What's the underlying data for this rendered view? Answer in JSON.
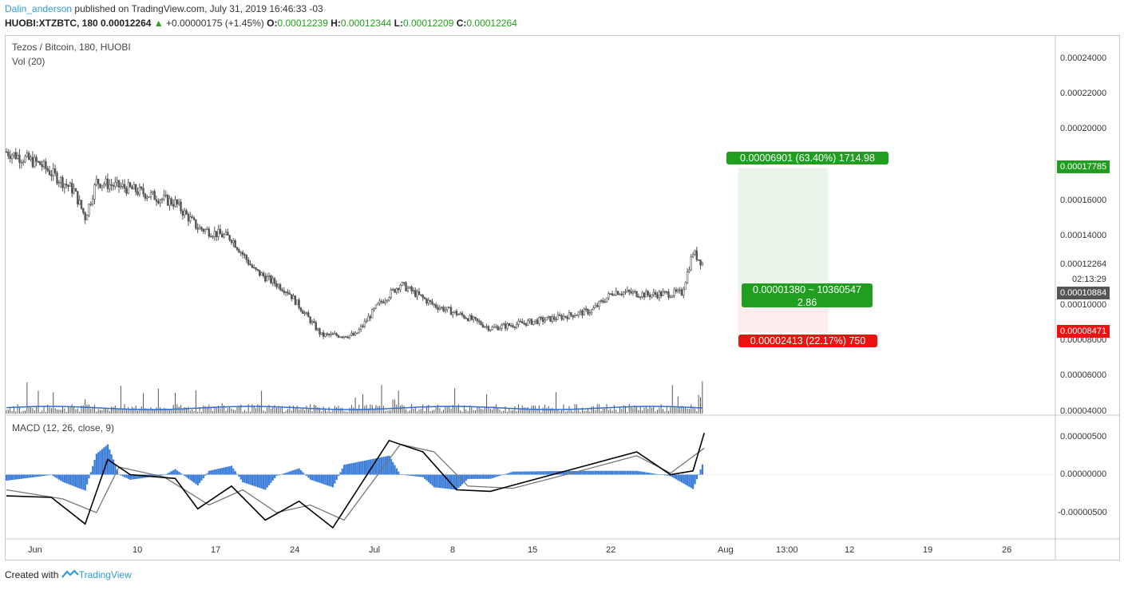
{
  "header": {
    "author": "Dalin_anderson",
    "published": "published on TradingView.com, July 31, 2019 16:46:33 -03",
    "symbol": "HUOBI:XTZBTC, 180",
    "last": "0.00012264",
    "change": "+0.00000175 (+1.45%)",
    "o_label": "O:",
    "o_value": "0.00012239",
    "h_label": "H:",
    "h_value": "0.00012344",
    "l_label": "L:",
    "l_value": "0.00012209",
    "c_label": "C:",
    "c_value": "0.00012264"
  },
  "legend": {
    "main": "Tezos / Bitcoin, 180, HUOBI",
    "volume": "Vol (20)",
    "macd": "MACD (12, 26, close, 9)"
  },
  "footer": {
    "created_with": "Created with",
    "brand": "TradingView"
  },
  "colors": {
    "candle": "#555555",
    "volume": "#555555",
    "vol_ma": "#2f6fd6",
    "macd_line": "#000000",
    "signal_line": "#777777",
    "hist": "#3b7dd8",
    "profit_zone": "#e8f5e8",
    "loss_zone": "#fdecec",
    "profit_label": "#1f9e1f",
    "loss_label": "#ee1111",
    "current_tag": "#555555"
  },
  "chart_data": [
    {
      "type": "candlestick",
      "title": "Tezos / Bitcoin, 180, HUOBI",
      "x_tick_labels": [
        "Jun",
        "10",
        "17",
        "24",
        "Jul",
        "8",
        "15",
        "22",
        "Aug",
        "13:00",
        "12",
        "19",
        "26"
      ],
      "y_tick_labels": [
        "0.00024000",
        "0.00022000",
        "0.00020000",
        "0.00016000",
        "0.00014000",
        "0.00010000",
        "0.00008000",
        "0.00006000",
        "0.00004000"
      ],
      "ylim": [
        4e-05,
        0.00025
      ],
      "close_trend": [
        {
          "date": "2019-05-30",
          "close": 0.000187
        },
        {
          "date": "2019-06-02",
          "close": 0.00018
        },
        {
          "date": "2019-06-05",
          "close": 0.000165
        },
        {
          "date": "2019-06-06",
          "close": 0.00015
        },
        {
          "date": "2019-06-07",
          "close": 0.00017
        },
        {
          "date": "2019-06-10",
          "close": 0.000166
        },
        {
          "date": "2019-06-14",
          "close": 0.000158
        },
        {
          "date": "2019-06-16",
          "close": 0.000144
        },
        {
          "date": "2019-06-19",
          "close": 0.000138
        },
        {
          "date": "2019-06-21",
          "close": 0.00012
        },
        {
          "date": "2019-06-24",
          "close": 0.000108
        },
        {
          "date": "2019-06-27",
          "close": 8.3e-05
        },
        {
          "date": "2019-06-30",
          "close": 8.3e-05
        },
        {
          "date": "2019-07-02",
          "close": 0.0001
        },
        {
          "date": "2019-07-04",
          "close": 0.000112
        },
        {
          "date": "2019-07-07",
          "close": 0.0001
        },
        {
          "date": "2019-07-10",
          "close": 9.3e-05
        },
        {
          "date": "2019-07-12",
          "close": 8.7e-05
        },
        {
          "date": "2019-07-15",
          "close": 9e-05
        },
        {
          "date": "2019-07-18",
          "close": 9.3e-05
        },
        {
          "date": "2019-07-21",
          "close": 9.7e-05
        },
        {
          "date": "2019-07-23",
          "close": 0.000108
        },
        {
          "date": "2019-07-26",
          "close": 0.000106
        },
        {
          "date": "2019-07-29",
          "close": 0.000107
        },
        {
          "date": "2019-07-30",
          "close": 0.00013
        },
        {
          "date": "2019-07-31",
          "close": 0.00012264
        }
      ],
      "current_price": "0.00012264",
      "countdown": "02:13:29",
      "position": {
        "entry": "0.00010884",
        "target": "0.00017785",
        "stop": "0.00008471",
        "profit_text": "0.00006901 (63.40%) 1714.98",
        "center_text": "0.00001380 ~ 10360547",
        "ratio_text": "2.86",
        "loss_text": "0.00002413 (22.17%) 750"
      },
      "volume": {
        "name": "Vol (20)"
      }
    },
    {
      "type": "line",
      "title": "MACD (12, 26, close, 9)",
      "y_tick_labels": [
        "0.00000500",
        "0.00000000",
        "-0.00000500"
      ],
      "ylim": [
        -8.3e-06,
        6.8e-06
      ],
      "series": [
        {
          "values": [
            {
              "date": "2019-05-30",
              "v": -2.8e-06
            },
            {
              "date": "2019-06-03",
              "v": -3e-06
            },
            {
              "date": "2019-06-06",
              "v": -6.5e-06
            },
            {
              "date": "2019-06-08",
              "v": 2e-06
            },
            {
              "date": "2019-06-10",
              "v": 0.0
            },
            {
              "date": "2019-06-14",
              "v": -5e-07
            },
            {
              "date": "2019-06-16",
              "v": -4.5e-06
            },
            {
              "date": "2019-06-19",
              "v": -1.5e-06
            },
            {
              "date": "2019-06-22",
              "v": -6e-06
            },
            {
              "date": "2019-06-25",
              "v": -3.5e-06
            },
            {
              "date": "2019-06-28",
              "v": -7e-06
            },
            {
              "date": "2019-07-03",
              "v": 4.5e-06
            },
            {
              "date": "2019-07-06",
              "v": 3e-06
            },
            {
              "date": "2019-07-09",
              "v": -2e-06
            },
            {
              "date": "2019-07-12",
              "v": -2.2e-06
            },
            {
              "date": "2019-07-15",
              "v": -1e-06
            },
            {
              "date": "2019-07-20",
              "v": 1e-06
            },
            {
              "date": "2019-07-25",
              "v": 3e-06
            },
            {
              "date": "2019-07-28",
              "v": 0.0
            },
            {
              "date": "2019-07-30",
              "v": 5e-07
            },
            {
              "date": "2019-07-31",
              "v": 5.5e-06
            }
          ]
        },
        {
          "values": [
            {
              "date": "2019-05-30",
              "v": -2e-06
            },
            {
              "date": "2019-06-04",
              "v": -3.2e-06
            },
            {
              "date": "2019-06-07",
              "v": -5e-06
            },
            {
              "date": "2019-06-09",
              "v": 1e-06
            },
            {
              "date": "2019-06-13",
              "v": -3e-07
            },
            {
              "date": "2019-06-17",
              "v": -4e-06
            },
            {
              "date": "2019-06-20",
              "v": -2e-06
            },
            {
              "date": "2019-06-23",
              "v": -5e-06
            },
            {
              "date": "2019-06-26",
              "v": -4e-06
            },
            {
              "date": "2019-06-29",
              "v": -6e-06
            },
            {
              "date": "2019-07-04",
              "v": 4e-06
            },
            {
              "date": "2019-07-07",
              "v": 3e-06
            },
            {
              "date": "2019-07-10",
              "v": -1.5e-06
            },
            {
              "date": "2019-07-14",
              "v": -1.8e-06
            },
            {
              "date": "2019-07-20",
              "v": 5e-07
            },
            {
              "date": "2019-07-25",
              "v": 2.5e-06
            },
            {
              "date": "2019-07-28",
              "v": 2e-07
            },
            {
              "date": "2019-07-31",
              "v": 3.5e-06
            }
          ]
        }
      ]
    }
  ]
}
